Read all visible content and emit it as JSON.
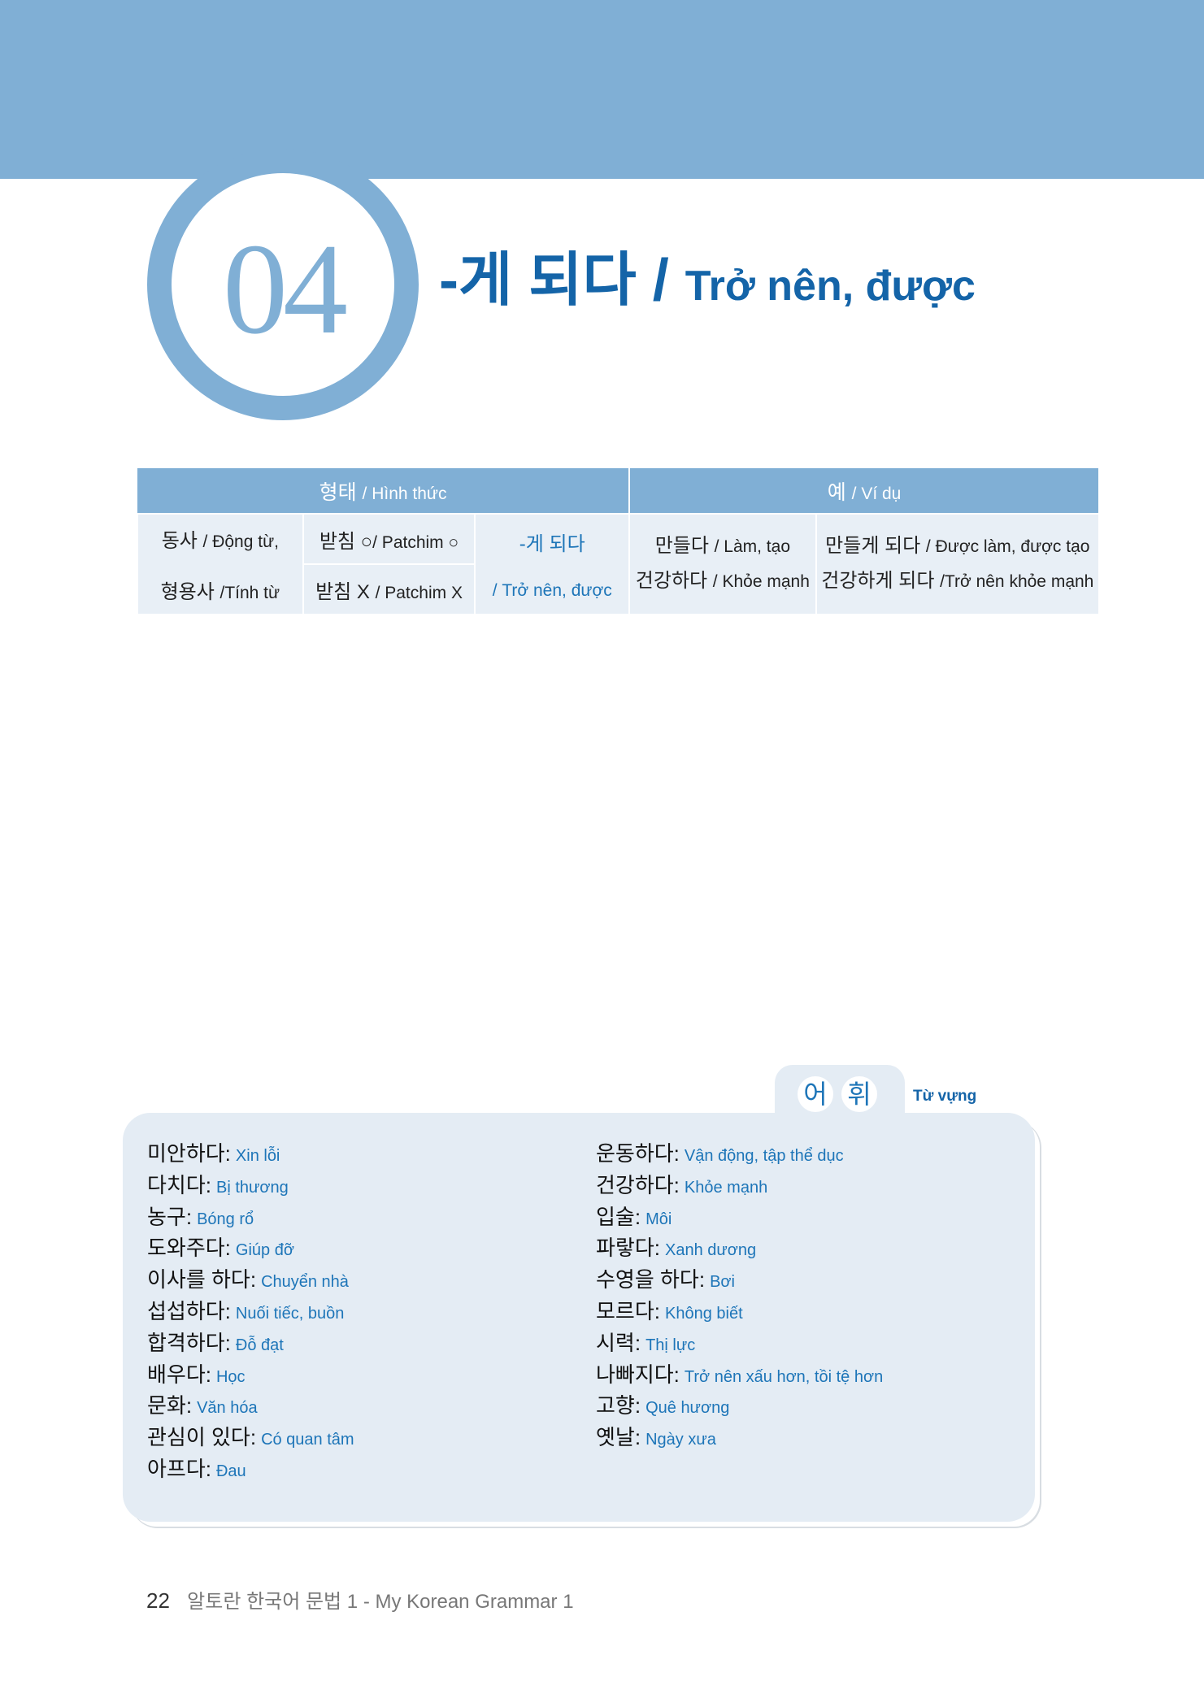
{
  "header": {
    "number": "04",
    "title_ko": "-게 되다 /",
    "title_vi": "Trở nên, được"
  },
  "table": {
    "header_form_ko": "형태",
    "header_form_vi": "/ Hình thức",
    "header_example_ko": "예",
    "header_example_vi": "/ Ví dụ",
    "pos_line1_ko": "동사",
    "pos_line1_vi": "/ Động từ,",
    "pos_line2_ko": "형용사",
    "pos_line2_vi": "/Tính từ",
    "batchim_o_ko": "받침 ○",
    "batchim_o_vi": "/ Patchim ○",
    "batchim_x_ko": "받침 X",
    "batchim_x_vi": "/ Patchim X",
    "ending_ko": "-게 되다",
    "ending_vi": "/ Trở nên, được",
    "examples": [
      {
        "base_ko": "만들다",
        "base_vi": "/ Làm, tạo",
        "result_ko": "만들게 되다",
        "result_vi": "/ Được làm, được tạo"
      },
      {
        "base_ko": "건강하다",
        "base_vi": "/ Khỏe mạnh",
        "result_ko": "건강하게 되다",
        "result_vi": "/Trở nên khỏe mạnh"
      }
    ]
  },
  "vocab": {
    "tab_ko_1": "어",
    "tab_ko_2": "휘",
    "tab_vi": "Từ vựng",
    "left": [
      {
        "ko": "미안하다:",
        "vi": "Xin lỗi"
      },
      {
        "ko": "다치다:",
        "vi": "Bị thương"
      },
      {
        "ko": "농구:",
        "vi": "Bóng rổ"
      },
      {
        "ko": "도와주다:",
        "vi": "Giúp đỡ"
      },
      {
        "ko": "이사를 하다:",
        "vi": "Chuyển nhà"
      },
      {
        "ko": "섭섭하다:",
        "vi": "Nuối tiếc, buồn"
      },
      {
        "ko": "합격하다:",
        "vi": "Đỗ đạt"
      },
      {
        "ko": "배우다:",
        "vi": "Học"
      },
      {
        "ko": "문화:",
        "vi": "Văn hóa"
      },
      {
        "ko": "관심이 있다:",
        "vi": "Có quan tâm"
      },
      {
        "ko": "아프다:",
        "vi": "Đau"
      }
    ],
    "right": [
      {
        "ko": "운동하다:",
        "vi": "Vận động, tập thể dục"
      },
      {
        "ko": "건강하다:",
        "vi": "Khỏe mạnh"
      },
      {
        "ko": "입술:",
        "vi": "Môi"
      },
      {
        "ko": "파랗다:",
        "vi": "Xanh dương"
      },
      {
        "ko": "수영을 하다:",
        "vi": "Bơi"
      },
      {
        "ko": "모르다:",
        "vi": "Không biết"
      },
      {
        "ko": "시력:",
        "vi": "Thị lực"
      },
      {
        "ko": "나빠지다:",
        "vi": "Trở nên xấu hơn, tồi tệ hơn"
      },
      {
        "ko": "고향:",
        "vi": "Quê hương"
      },
      {
        "ko": "옛날:",
        "vi": "Ngày xưa"
      }
    ]
  },
  "footer": {
    "page": "22",
    "book": "알토란 한국어 문법 1 - My Korean Grammar 1"
  }
}
